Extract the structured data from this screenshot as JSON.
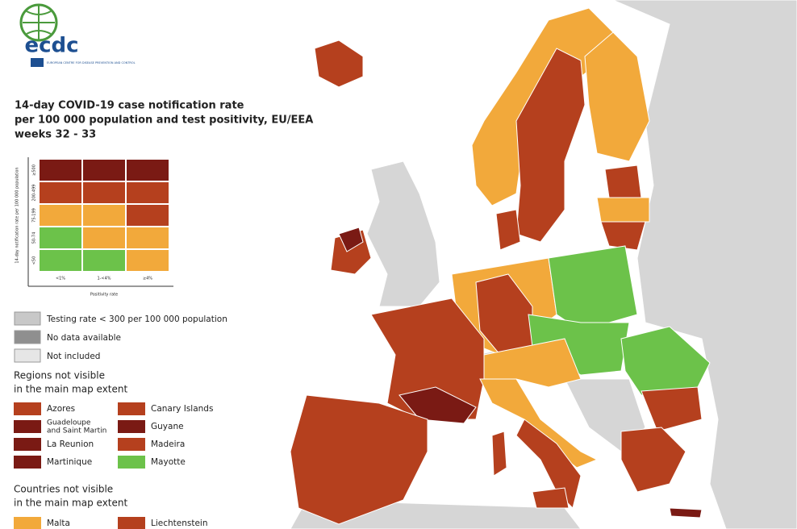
{
  "header": {
    "logo": "ecdc",
    "organization": "EUROPEAN CENTRE FOR DISEASE PREVENTION AND CONTROL"
  },
  "title": [
    "14-day COVID-19 case notification rate",
    "per 100 000 population and test positivity, EU/EEA",
    "weeks 32 - 33"
  ],
  "matrix": {
    "y_label": "14-day notification rate per 100 000 population",
    "y_ticks": [
      "≥500",
      "200-499",
      "75-199",
      "50-74",
      "<50"
    ],
    "x_ticks": [
      "<1%",
      "1-<4%",
      "≥4%"
    ],
    "x_label": "Positivity rate"
  },
  "legend": [
    "Testing rate < 300 per 100 000 population",
    "No data available",
    "Not included"
  ],
  "regions": {
    "heading": [
      "Regions not visible",
      "in the main map extent"
    ],
    "items": [
      [
        "Azores"
      ],
      [
        "Canary Islands"
      ],
      [
        "Guadeloupe",
        "and Saint Martin"
      ],
      [
        "Guyane"
      ],
      [
        "La Reunion"
      ],
      [
        "Madeira"
      ],
      [
        "Martinique"
      ],
      [
        "Mayotte"
      ]
    ]
  },
  "countries": {
    "heading": [
      "Countries not visible",
      "in the main map extent"
    ],
    "items": [
      "Malta",
      "Liechtenstein"
    ]
  }
}
